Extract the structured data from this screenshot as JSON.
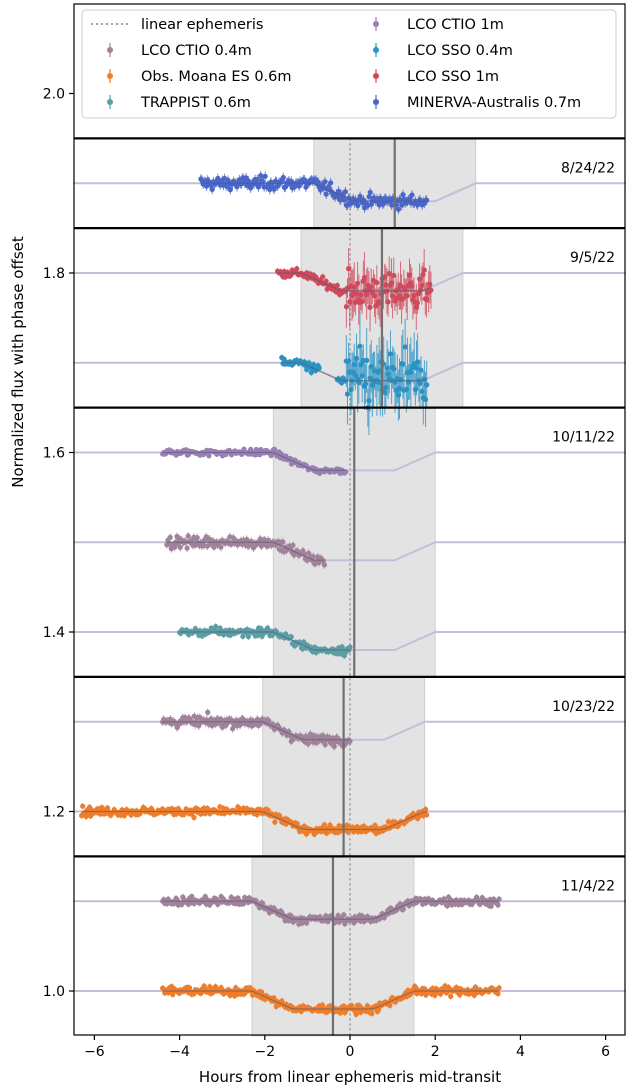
{
  "chart_data": {
    "type": "scatter",
    "xlabel": "Hours from linear ephemeris mid-transit",
    "ylabel": "Normalized flux with phase offset",
    "xlim": [
      -6.5,
      6.5
    ],
    "ylim": [
      0.95,
      2.1
    ],
    "x_ticks": [
      -6,
      -4,
      -2,
      0,
      2,
      4,
      6
    ],
    "y_ticks": [
      1.0,
      1.2,
      1.4,
      1.6,
      1.8,
      2.0
    ],
    "legend": {
      "placement": "top",
      "entries": [
        {
          "label": "linear ephemeris",
          "kind": "dotted-line",
          "color": "#a0a0a0"
        },
        {
          "label": "LCO CTIO 0.4m",
          "kind": "marker",
          "color": "#a0829a"
        },
        {
          "label": "Obs. Moana ES 0.6m",
          "kind": "marker",
          "color": "#ef7d2a"
        },
        {
          "label": "TRAPPIST 0.6m",
          "kind": "marker",
          "color": "#5b9ea6"
        },
        {
          "label": "LCO CTIO 1m",
          "kind": "marker",
          "color": "#9a7fb5"
        },
        {
          "label": "LCO SSO 0.4m",
          "kind": "marker",
          "color": "#2a93c4"
        },
        {
          "label": "LCO SSO 1m",
          "kind": "marker",
          "color": "#cf4a5a"
        },
        {
          "label": "MINERVA-Australis 0.7m",
          "kind": "marker",
          "color": "#4a66c9"
        }
      ]
    },
    "linear_ephemeris_x": 0,
    "panels": [
      {
        "date": "8/24/22",
        "y_range": [
          1.85,
          1.95
        ],
        "transit_window": [
          -0.85,
          2.95
        ],
        "measured_midtransit": 1.05,
        "series": [
          {
            "instrument": "MINERVA-Australis 0.7m",
            "color": "#4a66c9",
            "x_start": -3.5,
            "x_end": 1.8,
            "baseline": 1.9,
            "depth": 0.02,
            "ingress": [
              -0.85,
              0.1
            ],
            "egress": [
              2.0,
              2.95
            ],
            "scatter": 0.006
          }
        ],
        "model_lines": [
          {
            "baseline": 1.9,
            "depth": 0.02,
            "ingress": [
              -0.85,
              0.1
            ],
            "egress": [
              2.0,
              2.95
            ]
          }
        ]
      },
      {
        "date": "9/5/22",
        "y_range": [
          1.65,
          1.85
        ],
        "transit_window": [
          -1.15,
          2.65
        ],
        "measured_midtransit": 0.75,
        "series": [
          {
            "instrument": "LCO SSO 1m",
            "color": "#cf4a5a",
            "x_start": -1.7,
            "x_end": 1.9,
            "baseline": 1.8,
            "depth": 0.02,
            "ingress": [
              -1.15,
              -0.2
            ],
            "egress": [
              1.7,
              2.65
            ],
            "scatter": 0.018
          },
          {
            "instrument": "LCO SSO 0.4m",
            "color": "#2a93c4",
            "x_start": -1.6,
            "x_end": 1.8,
            "baseline": 1.7,
            "depth": 0.02,
            "ingress": [
              -1.15,
              -0.2
            ],
            "egress": [
              1.7,
              2.65
            ],
            "scatter": 0.025,
            "gap": [
              -0.7,
              -0.3
            ]
          }
        ],
        "model_lines": [
          {
            "baseline": 1.8,
            "depth": 0.02,
            "ingress": [
              -1.15,
              -0.2
            ],
            "egress": [
              1.7,
              2.65
            ]
          },
          {
            "baseline": 1.7,
            "depth": 0.02,
            "ingress": [
              -1.15,
              -0.2
            ],
            "egress": [
              1.7,
              2.65
            ]
          }
        ]
      },
      {
        "date": "10/11/22",
        "y_range": [
          1.35,
          1.65
        ],
        "transit_window": [
          -1.8,
          2.0
        ],
        "measured_midtransit": 0.1,
        "series": [
          {
            "instrument": "LCO CTIO 1m",
            "color": "#9a7fb5",
            "x_start": -4.4,
            "x_end": -0.1,
            "baseline": 1.6,
            "depth": 0.02,
            "ingress": [
              -1.8,
              -0.85
            ],
            "egress": [
              1.05,
              2.0
            ],
            "scatter": 0.003
          },
          {
            "instrument": "LCO CTIO 0.4m",
            "color": "#a0829a",
            "x_start": -4.3,
            "x_end": -0.6,
            "baseline": 1.5,
            "depth": 0.02,
            "ingress": [
              -1.8,
              -0.85
            ],
            "egress": [
              1.05,
              2.0
            ],
            "scatter": 0.005
          },
          {
            "instrument": "TRAPPIST 0.6m",
            "color": "#5b9ea6",
            "x_start": -4.0,
            "x_end": 0.0,
            "baseline": 1.4,
            "depth": 0.02,
            "ingress": [
              -1.8,
              -0.85
            ],
            "egress": [
              1.05,
              2.0
            ],
            "scatter": 0.004
          }
        ],
        "model_lines": [
          {
            "baseline": 1.6,
            "depth": 0.02,
            "ingress": [
              -1.8,
              -0.85
            ],
            "egress": [
              1.05,
              2.0
            ]
          },
          {
            "baseline": 1.5,
            "depth": 0.02,
            "ingress": [
              -1.8,
              -0.85
            ],
            "egress": [
              1.05,
              2.0
            ]
          },
          {
            "baseline": 1.4,
            "depth": 0.02,
            "ingress": [
              -1.8,
              -0.85
            ],
            "egress": [
              1.05,
              2.0
            ]
          }
        ]
      },
      {
        "date": "10/23/22",
        "y_range": [
          1.15,
          1.35
        ],
        "transit_window": [
          -2.05,
          1.75
        ],
        "measured_midtransit": -0.15,
        "series": [
          {
            "instrument": "LCO CTIO 0.4m",
            "color": "#a0829a",
            "x_start": -4.4,
            "x_end": 0.0,
            "baseline": 1.3,
            "depth": 0.02,
            "ingress": [
              -2.05,
              -1.1
            ],
            "egress": [
              0.8,
              1.75
            ],
            "scatter": 0.005
          },
          {
            "instrument": "Obs. Moana ES 0.6m",
            "color": "#ef7d2a",
            "x_start": -6.3,
            "x_end": 1.8,
            "baseline": 1.2,
            "depth": 0.02,
            "ingress": [
              -2.05,
              -1.1
            ],
            "egress": [
              0.8,
              1.75
            ],
            "scatter": 0.004
          }
        ],
        "model_lines": [
          {
            "baseline": 1.3,
            "depth": 0.02,
            "ingress": [
              -2.05,
              -1.1
            ],
            "egress": [
              0.8,
              1.75
            ]
          },
          {
            "baseline": 1.2,
            "depth": 0.02,
            "ingress": [
              -2.05,
              -1.1
            ],
            "egress": [
              0.8,
              1.75
            ]
          }
        ]
      },
      {
        "date": "11/4/22",
        "y_range": [
          0.95,
          1.15
        ],
        "transit_window": [
          -2.3,
          1.5
        ],
        "measured_midtransit": -0.4,
        "series": [
          {
            "instrument": "LCO CTIO 0.4m",
            "color": "#a0829a",
            "x_start": -4.4,
            "x_end": 3.5,
            "baseline": 1.1,
            "depth": 0.02,
            "ingress": [
              -2.3,
              -1.35
            ],
            "egress": [
              0.55,
              1.5
            ],
            "scatter": 0.004
          },
          {
            "instrument": "Obs. Moana ES 0.6m",
            "color": "#ef7d2a",
            "x_start": -4.4,
            "x_end": 3.5,
            "baseline": 1.0,
            "depth": 0.02,
            "ingress": [
              -2.3,
              -1.35
            ],
            "egress": [
              0.55,
              1.5
            ],
            "scatter": 0.004
          }
        ],
        "model_lines": [
          {
            "baseline": 1.1,
            "depth": 0.02,
            "ingress": [
              -2.3,
              -1.35
            ],
            "egress": [
              0.55,
              1.5
            ]
          },
          {
            "baseline": 1.0,
            "depth": 0.02,
            "ingress": [
              -2.3,
              -1.35
            ],
            "egress": [
              0.55,
              1.5
            ]
          }
        ]
      }
    ]
  }
}
